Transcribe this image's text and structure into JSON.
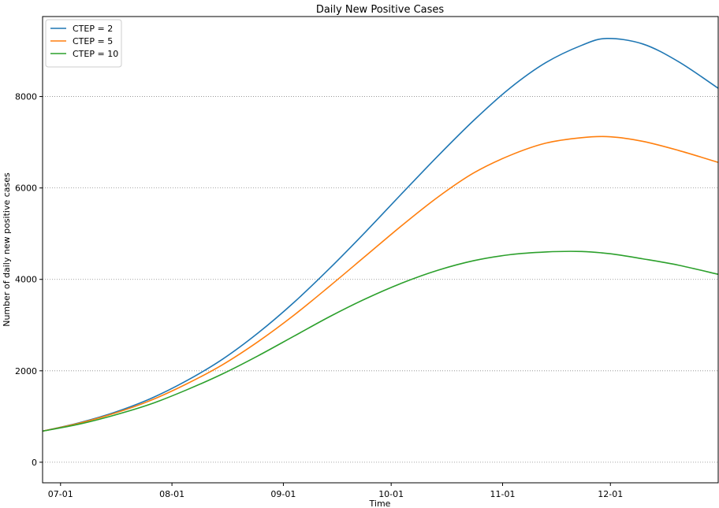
{
  "chart_data": {
    "type": "line",
    "title": "Daily New Positive Cases",
    "xlabel": "Time",
    "ylabel": "Number of daily new positive cases",
    "x_ticks": [
      "07-01",
      "08-01",
      "09-01",
      "10-01",
      "11-01",
      "12-01"
    ],
    "x_tick_dates": [
      "2020-07-01",
      "2020-08-01",
      "2020-09-01",
      "2020-10-01",
      "2020-11-01",
      "2020-12-01"
    ],
    "xlim": [
      "2020-06-26",
      "2020-12-31"
    ],
    "y_ticks": [
      0,
      2000,
      4000,
      6000,
      8000
    ],
    "ylim": [
      -450,
      9750
    ],
    "grid": "y-dotted",
    "legend": "top-left",
    "series": [
      {
        "name": "CTEP = 2",
        "color": "#1f77b4",
        "points": [
          [
            "2020-06-26",
            680
          ],
          [
            "2020-07-06",
            860
          ],
          [
            "2020-07-16",
            1090
          ],
          [
            "2020-07-26",
            1390
          ],
          [
            "2020-08-05",
            1780
          ],
          [
            "2020-08-15",
            2250
          ],
          [
            "2020-08-25",
            2830
          ],
          [
            "2020-09-04",
            3500
          ],
          [
            "2020-09-14",
            4250
          ],
          [
            "2020-09-24",
            5050
          ],
          [
            "2020-10-04",
            5880
          ],
          [
            "2020-10-14",
            6700
          ],
          [
            "2020-10-24",
            7480
          ],
          [
            "2020-11-03",
            8180
          ],
          [
            "2020-11-13",
            8740
          ],
          [
            "2020-11-23",
            9120
          ],
          [
            "2020-11-30",
            9270
          ],
          [
            "2020-12-10",
            9150
          ],
          [
            "2020-12-20",
            8760
          ],
          [
            "2020-12-31",
            8180
          ]
        ]
      },
      {
        "name": "CTEP = 5",
        "color": "#ff7f0e",
        "points": [
          [
            "2020-06-26",
            680
          ],
          [
            "2020-07-06",
            850
          ],
          [
            "2020-07-16",
            1070
          ],
          [
            "2020-07-26",
            1350
          ],
          [
            "2020-08-05",
            1710
          ],
          [
            "2020-08-15",
            2130
          ],
          [
            "2020-08-25",
            2640
          ],
          [
            "2020-09-04",
            3220
          ],
          [
            "2020-09-14",
            3860
          ],
          [
            "2020-09-24",
            4520
          ],
          [
            "2020-10-04",
            5180
          ],
          [
            "2020-10-14",
            5800
          ],
          [
            "2020-10-24",
            6330
          ],
          [
            "2020-11-03",
            6710
          ],
          [
            "2020-11-13",
            6980
          ],
          [
            "2020-11-23",
            7100
          ],
          [
            "2020-12-01",
            7120
          ],
          [
            "2020-12-10",
            7020
          ],
          [
            "2020-12-20",
            6820
          ],
          [
            "2020-12-31",
            6560
          ]
        ]
      },
      {
        "name": "CTEP = 10",
        "color": "#2ca02c",
        "points": [
          [
            "2020-06-26",
            680
          ],
          [
            "2020-07-06",
            830
          ],
          [
            "2020-07-16",
            1030
          ],
          [
            "2020-07-26",
            1270
          ],
          [
            "2020-08-05",
            1580
          ],
          [
            "2020-08-15",
            1930
          ],
          [
            "2020-08-25",
            2330
          ],
          [
            "2020-09-04",
            2760
          ],
          [
            "2020-09-14",
            3190
          ],
          [
            "2020-09-24",
            3580
          ],
          [
            "2020-10-04",
            3920
          ],
          [
            "2020-10-14",
            4200
          ],
          [
            "2020-10-24",
            4410
          ],
          [
            "2020-11-03",
            4540
          ],
          [
            "2020-11-13",
            4600
          ],
          [
            "2020-11-23",
            4610
          ],
          [
            "2020-12-01",
            4560
          ],
          [
            "2020-12-10",
            4450
          ],
          [
            "2020-12-20",
            4310
          ],
          [
            "2020-12-31",
            4110
          ]
        ]
      }
    ]
  }
}
